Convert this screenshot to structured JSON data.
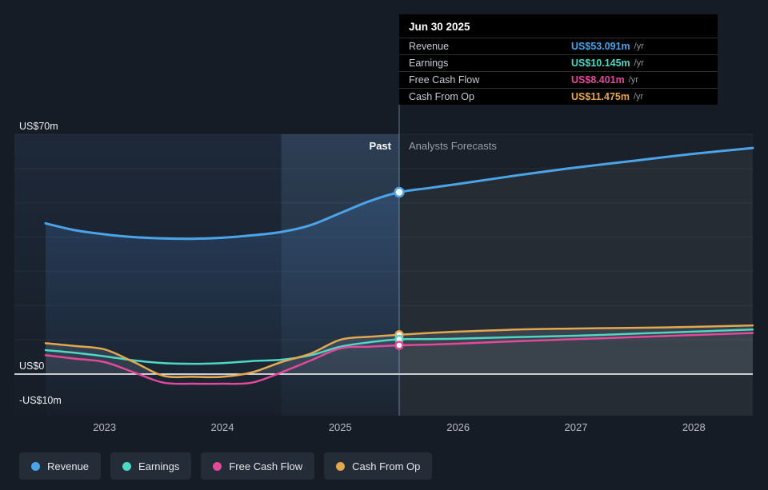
{
  "page": {
    "background": "#161C25"
  },
  "tooltip": {
    "title": "Jun 30 2025",
    "rows": [
      {
        "label": "Revenue",
        "value": "US$53.091m",
        "suffix": "/yr",
        "color": "#4BA3E8"
      },
      {
        "label": "Earnings",
        "value": "US$10.145m",
        "suffix": "/yr",
        "color": "#4FD6C5"
      },
      {
        "label": "Free Cash Flow",
        "value": "US$8.401m",
        "suffix": "/yr",
        "color": "#E2499A"
      },
      {
        "label": "Cash From Op",
        "value": "US$11.475m",
        "suffix": "/yr",
        "color": "#E3A84E"
      }
    ]
  },
  "annotations": {
    "past": "Past",
    "forecast": "Analysts Forecasts"
  },
  "axis": {
    "y_labels": [
      {
        "text": "US$70m",
        "value": 70
      },
      {
        "text": "US$0",
        "value": 0
      },
      {
        "text": "-US$10m",
        "value": -10
      }
    ],
    "x_labels": [
      "2023",
      "2024",
      "2025",
      "2026",
      "2027",
      "2028"
    ]
  },
  "legend": [
    {
      "label": "Revenue",
      "color": "#4BA3E8"
    },
    {
      "label": "Earnings",
      "color": "#4FD6C5"
    },
    {
      "label": "Free Cash Flow",
      "color": "#E2499A"
    },
    {
      "label": "Cash From Op",
      "color": "#E3A84E"
    }
  ],
  "chart_data": {
    "type": "line",
    "y_unit": "US$m",
    "x": [
      2022.5,
      2022.75,
      2023,
      2023.25,
      2023.5,
      2023.75,
      2024,
      2024.25,
      2024.5,
      2024.75,
      2025,
      2025.25,
      2025.5,
      2025.75,
      2026,
      2026.5,
      2027,
      2027.5,
      2028,
      2028.5
    ],
    "series": [
      {
        "name": "Revenue",
        "color": "#4BA3E8",
        "values": [
          44,
          42,
          40.8,
          40,
          39.6,
          39.5,
          39.8,
          40.5,
          41.5,
          43.5,
          47,
          50.5,
          53.091,
          54.3,
          55.5,
          58,
          60.3,
          62.3,
          64.3,
          66
        ]
      },
      {
        "name": "Earnings",
        "color": "#4FD6C5",
        "values": [
          7,
          6.2,
          5.2,
          4,
          3.2,
          3,
          3.2,
          3.8,
          4.2,
          5.5,
          8,
          9.3,
          10.145,
          10.2,
          10.35,
          10.8,
          11.2,
          11.8,
          12.4,
          13
        ]
      },
      {
        "name": "Free Cash Flow",
        "color": "#E2499A",
        "values": [
          5.5,
          4.5,
          3.5,
          0.5,
          -2.5,
          -2.8,
          -2.8,
          -2.5,
          0.5,
          4,
          7.5,
          8,
          8.401,
          8.6,
          8.9,
          9.6,
          10.2,
          10.8,
          11.4,
          12
        ]
      },
      {
        "name": "Cash From Op",
        "color": "#E3A84E",
        "values": [
          9,
          8.2,
          7.2,
          3.5,
          -0.5,
          -0.8,
          -0.8,
          0.5,
          3.5,
          6,
          10,
          10.9,
          11.475,
          12,
          12.4,
          13,
          13.3,
          13.5,
          13.8,
          14.2
        ]
      }
    ],
    "xlim": [
      2022.5,
      2028.5
    ],
    "ylim": [
      -10,
      70
    ],
    "gridlines": [
      10,
      20,
      30,
      40,
      50,
      60,
      70
    ],
    "divider_x": 2025.5,
    "divider_date": "Jun 30 2025",
    "highlight_band": [
      2024.5,
      2025.5
    ],
    "markers": [
      {
        "series": "Revenue",
        "x": 2025.5,
        "y": 53.091
      },
      {
        "series": "Cash From Op",
        "x": 2025.5,
        "y": 11.475
      },
      {
        "series": "Earnings",
        "x": 2025.5,
        "y": 10.145
      },
      {
        "series": "Free Cash Flow",
        "x": 2025.5,
        "y": 8.401
      }
    ]
  }
}
